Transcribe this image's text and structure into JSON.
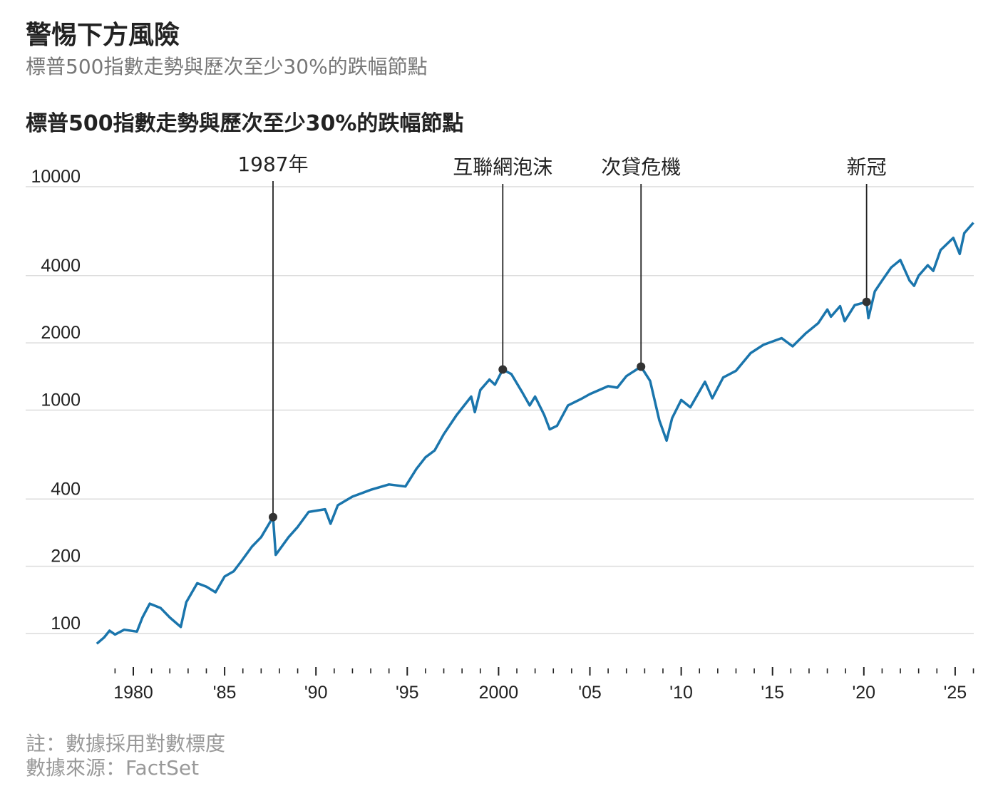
{
  "header": {
    "title": "警惕下方風險",
    "subtitle": "標普500指數走勢與歷次至少30%的跌幅節點"
  },
  "footer": {
    "note": "註：數據採用對數標度",
    "source": "數據來源：FactSet"
  },
  "chart_data": {
    "type": "line",
    "title": "標普500指數走勢與歷次至少30%的跌幅節點",
    "y_scale": "log",
    "ylim": [
      80,
      11000
    ],
    "xlim": [
      1978,
      2026.2
    ],
    "y_ticks": [
      100,
      200,
      400,
      1000,
      2000,
      4000,
      10000
    ],
    "y_tick_labels": [
      "100",
      "200",
      "400",
      "1000",
      "2000",
      "4000",
      "10000"
    ],
    "x_ticks": [
      1980,
      1985,
      1990,
      1995,
      2000,
      2005,
      2010,
      2015,
      2020,
      2025
    ],
    "x_tick_labels": [
      "1980",
      "'85",
      "'90",
      "'95",
      "2000",
      "'05",
      "'10",
      "'15",
      "'20",
      "'25"
    ],
    "grid": "horizontal",
    "line_color": "#1a75ac",
    "series": [
      {
        "x": [
          1978.0,
          1978.4,
          1978.7,
          1979.0,
          1979.5,
          1980.2,
          1980.5,
          1980.9,
          1981.5,
          1982.0,
          1982.6,
          1982.9,
          1983.5,
          1984.0,
          1984.5,
          1985.0,
          1985.5,
          1985.9,
          1986.5,
          1987.0,
          1987.65,
          1987.8,
          1988.5,
          1989.0,
          1989.6,
          1990.5,
          1990.8,
          1991.2,
          1992.0,
          1993.0,
          1994.0,
          1994.9,
          1995.5,
          1996.0,
          1996.5,
          1997.0,
          1997.7,
          1998.5,
          1998.7,
          1999.0,
          1999.5,
          1999.8,
          2000.23,
          2000.7,
          2001.3,
          2001.7,
          2002.0,
          2002.5,
          2002.8,
          2003.2,
          2003.8,
          2004.5,
          2005.0,
          2006.0,
          2006.5,
          2007.0,
          2007.8,
          2008.3,
          2008.8,
          2009.2,
          2009.5,
          2010.0,
          2010.5,
          2011.3,
          2011.7,
          2012.3,
          2013.0,
          2013.8,
          2014.5,
          2015.5,
          2016.1,
          2016.8,
          2017.5,
          2018.0,
          2018.2,
          2018.7,
          2018.95,
          2019.5,
          2020.15,
          2020.25,
          2020.6,
          2021.0,
          2021.5,
          2022.0,
          2022.5,
          2022.75,
          2023.0,
          2023.5,
          2023.8,
          2024.2,
          2024.9,
          2025.25,
          2025.5,
          2026.0
        ],
        "y": [
          90,
          96,
          103,
          99,
          104,
          102,
          118,
          136,
          130,
          118,
          107,
          138,
          168,
          162,
          153,
          180,
          190,
          210,
          245,
          270,
          332,
          225,
          270,
          300,
          350,
          360,
          310,
          375,
          410,
          440,
          465,
          455,
          545,
          615,
          660,
          780,
          950,
          1150,
          980,
          1230,
          1370,
          1300,
          1520,
          1450,
          1200,
          1050,
          1150,
          950,
          820,
          850,
          1050,
          1120,
          1180,
          1280,
          1260,
          1420,
          1565,
          1350,
          900,
          730,
          920,
          1110,
          1030,
          1340,
          1130,
          1400,
          1500,
          1800,
          1960,
          2100,
          1930,
          2200,
          2450,
          2820,
          2620,
          2920,
          2500,
          2950,
          3050,
          2580,
          3400,
          3800,
          4350,
          4700,
          3800,
          3600,
          4000,
          4450,
          4200,
          5200,
          5900,
          5000,
          6200,
          6900
        ]
      }
    ],
    "annotations": [
      {
        "label": "1987年",
        "x": 1987.65,
        "y": 332
      },
      {
        "label": "互聯網泡沫",
        "x": 2000.23,
        "y": 1520
      },
      {
        "label": "次貸危機",
        "x": 2007.8,
        "y": 1565
      },
      {
        "label": "新冠",
        "x": 2020.15,
        "y": 3050
      }
    ]
  }
}
